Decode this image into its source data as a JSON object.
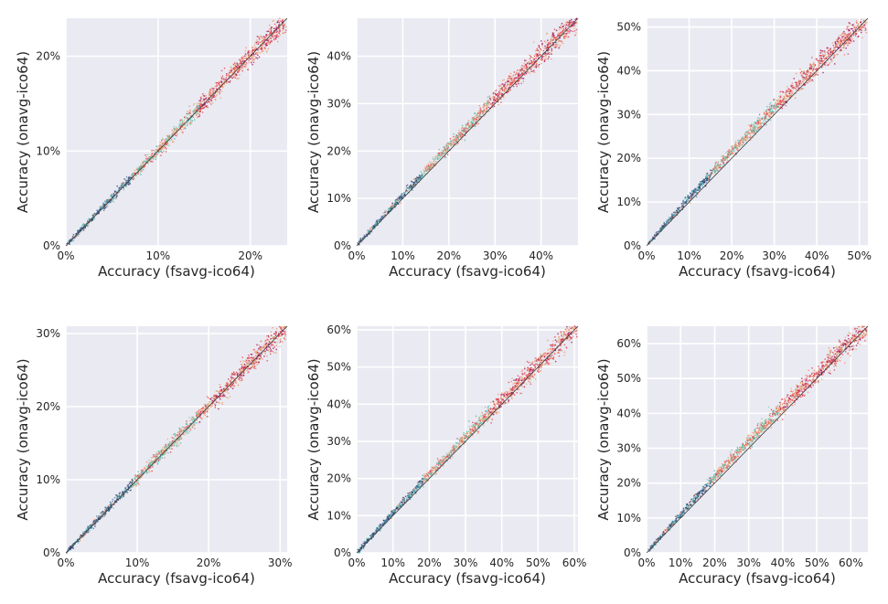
{
  "colors": {
    "plot_background": "#eaeaf2",
    "grid": "#ffffff",
    "diagonal": "#3a3a3a",
    "point_palette": [
      "#2b3a67",
      "#4a6fa5",
      "#3fb8af",
      "#7fc8a9",
      "#e8a86d",
      "#f4845f",
      "#e63946",
      "#9d0759",
      "#c2b280",
      "#5b8a72"
    ]
  },
  "chart_data": [
    {
      "type": "scatter",
      "title": "",
      "xlabel": "Accuracy (fsavg-ico64)",
      "ylabel": "Accuracy (onavg-ico64)",
      "xlim": [
        0,
        24
      ],
      "ylim": [
        0,
        24
      ],
      "xticks": [
        0,
        10,
        20
      ],
      "yticks": [
        0,
        10,
        20
      ],
      "tick_labels": [
        "0%",
        "10%",
        "20%"
      ],
      "grid": true,
      "diagonal_line": true,
      "approx_relation": "y ≈ 1.0·x",
      "point_count_note": "dense cloud of small points along the diagonal"
    },
    {
      "type": "scatter",
      "title": "",
      "xlabel": "Accuracy (fsavg-ico64)",
      "ylabel": "Accuracy (onavg-ico64)",
      "xlim": [
        0,
        48
      ],
      "ylim": [
        0,
        48
      ],
      "xticks": [
        0,
        10,
        20,
        30,
        40
      ],
      "yticks": [
        0,
        10,
        20,
        30,
        40
      ],
      "tick_labels": [
        "0%",
        "10%",
        "20%",
        "30%",
        "40%"
      ],
      "grid": true,
      "diagonal_line": true,
      "approx_relation": "y ≈ 1.05·x at low values, converging near the top",
      "point_count_note": "dense cloud of small points along the diagonal"
    },
    {
      "type": "scatter",
      "title": "",
      "xlabel": "Accuracy (fsavg-ico64)",
      "ylabel": "Accuracy (onavg-ico64)",
      "xlim": [
        0,
        52
      ],
      "ylim": [
        0,
        52
      ],
      "xticks": [
        0,
        10,
        20,
        30,
        40,
        50
      ],
      "yticks": [
        0,
        10,
        20,
        30,
        40,
        50
      ],
      "tick_labels": [
        "0%",
        "10%",
        "20%",
        "30%",
        "40%",
        "50%"
      ],
      "grid": true,
      "diagonal_line": true,
      "approx_relation": "y ≈ 1.08·x at low values, converging near the top",
      "point_count_note": "dense cloud of small points along the diagonal"
    },
    {
      "type": "scatter",
      "title": "",
      "xlabel": "Accuracy (fsavg-ico64)",
      "ylabel": "Accuracy (onavg-ico64)",
      "xlim": [
        0,
        31
      ],
      "ylim": [
        0,
        31
      ],
      "xticks": [
        0,
        10,
        20,
        30
      ],
      "yticks": [
        0,
        10,
        20,
        30
      ],
      "tick_labels": [
        "0%",
        "10%",
        "20%",
        "30%"
      ],
      "grid": true,
      "diagonal_line": true,
      "approx_relation": "y ≈ 1.0·x",
      "point_count_note": "dense cloud of small points along the diagonal"
    },
    {
      "type": "scatter",
      "title": "",
      "xlabel": "Accuracy (fsavg-ico64)",
      "ylabel": "Accuracy (onavg-ico64)",
      "xlim": [
        0,
        61
      ],
      "ylim": [
        0,
        61
      ],
      "xticks": [
        0,
        10,
        20,
        30,
        40,
        50,
        60
      ],
      "yticks": [
        0,
        10,
        20,
        30,
        40,
        50,
        60
      ],
      "tick_labels": [
        "0%",
        "10%",
        "20%",
        "30%",
        "40%",
        "50%",
        "60%"
      ],
      "grid": true,
      "diagonal_line": true,
      "approx_relation": "y ≈ 1.05·x at low values, converging near the top",
      "point_count_note": "dense cloud of small points along the diagonal"
    },
    {
      "type": "scatter",
      "title": "",
      "xlabel": "Accuracy (fsavg-ico64)",
      "ylabel": "Accuracy (onavg-ico64)",
      "xlim": [
        0,
        65
      ],
      "ylim": [
        0,
        65
      ],
      "xticks": [
        0,
        10,
        20,
        30,
        40,
        50,
        60
      ],
      "yticks": [
        0,
        10,
        20,
        30,
        40,
        50,
        60
      ],
      "tick_labels": [
        "0%",
        "10%",
        "20%",
        "30%",
        "40%",
        "50%",
        "60%"
      ],
      "grid": true,
      "diagonal_line": true,
      "approx_relation": "y ≈ 1.08·x at low values, converging near the top",
      "point_count_note": "dense cloud of small points along the diagonal"
    }
  ]
}
